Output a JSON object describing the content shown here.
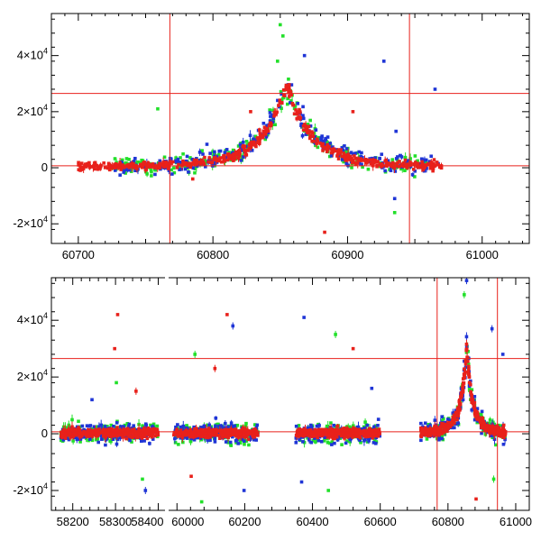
{
  "colors": {
    "red": "#e8211b",
    "green": "#22e02a",
    "blue": "#1f35d6",
    "axis": "#000000",
    "refline": "#e8211b"
  },
  "chart_data": [
    {
      "type": "scatter",
      "name": "zoom-panel",
      "title": "",
      "xlabel": "",
      "ylabel": "",
      "xlim": [
        60680,
        61035
      ],
      "ylim": [
        -27000,
        55000
      ],
      "x_ticks": [
        60700,
        60800,
        60900,
        61000
      ],
      "x_tick_labels": [
        "60700",
        "60800",
        "60900",
        "61000"
      ],
      "y_ticks": [
        -20000,
        0,
        20000,
        40000
      ],
      "y_tick_labels": [
        {
          "base": "-2×10",
          "exp": "4"
        },
        {
          "base": "0",
          "exp": ""
        },
        {
          "base": "2×10",
          "exp": "4"
        },
        {
          "base": "4×10",
          "exp": "4"
        }
      ],
      "hlines": [
        700,
        26500
      ],
      "vlines": [
        60768,
        60946
      ],
      "series": [
        {
          "name": "blue",
          "color": "blue",
          "marker": "square",
          "x_range": [
            60725,
            60970
          ],
          "outliers": [
            [
              60927,
              38000
            ],
            [
              60936,
              13000
            ],
            [
              60935,
              -11000
            ],
            [
              60965,
              28000
            ],
            [
              60868,
              40000
            ]
          ]
        },
        {
          "name": "green",
          "color": "green",
          "marker": "square",
          "x_range": [
            60725,
            60960
          ],
          "outliers": [
            [
              60850,
              51000
            ],
            [
              60852,
              47000
            ],
            [
              60759,
              21000
            ],
            [
              60935,
              -16000
            ],
            [
              60848,
              38000
            ]
          ]
        },
        {
          "name": "red",
          "color": "red",
          "marker": "square",
          "x_range": [
            60700,
            60970
          ],
          "outliers": [
            [
              60883,
              -23000
            ],
            [
              60904,
              20000
            ],
            [
              60828,
              20000
            ],
            [
              60785,
              -4000
            ]
          ]
        }
      ],
      "profile": {
        "peak_x": 60855,
        "peak_y": 29000,
        "widths": [
          14,
          28
        ],
        "base": 500
      }
    },
    {
      "type": "scatter",
      "name": "full-panel",
      "title": "",
      "xlabel": "",
      "ylabel": "",
      "x_segments": [
        {
          "xlim": [
            58150,
            58420
          ],
          "ticks": [
            58200,
            58300,
            58400
          ],
          "labels": [
            "58200",
            "58300",
            "58400"
          ]
        },
        {
          "xlim": [
            59970,
            61040
          ],
          "ticks": [
            60000,
            60200,
            60400,
            60600,
            60800,
            61000
          ],
          "labels": [
            "60000",
            "60200",
            "60400",
            "60600",
            "60800",
            "61000"
          ]
        }
      ],
      "ylim": [
        -27000,
        55000
      ],
      "y_ticks": [
        -20000,
        0,
        20000,
        40000
      ],
      "y_tick_labels": [
        {
          "base": "-2×10",
          "exp": "4"
        },
        {
          "base": "0",
          "exp": ""
        },
        {
          "base": "2×10",
          "exp": "4"
        },
        {
          "base": "4×10",
          "exp": "4"
        }
      ],
      "hlines": [
        700,
        26500
      ],
      "vlines": [
        60768,
        60946
      ],
      "observing_seasons": [
        [
          58170,
          58400
        ],
        [
          59990,
          60240
        ],
        [
          60350,
          60600
        ],
        [
          60720,
          60970
        ]
      ],
      "series": [
        {
          "name": "blue",
          "color": "blue",
          "marker": "square"
        },
        {
          "name": "green",
          "color": "green",
          "marker": "square"
        },
        {
          "name": "red",
          "color": "red",
          "marker": "square"
        }
      ],
      "outliers": [
        [
          58305,
          42000,
          "red"
        ],
        [
          58298,
          30000,
          "red"
        ],
        [
          58302,
          18000,
          "green"
        ],
        [
          58348,
          15000,
          "red"
        ],
        [
          58370,
          -20000,
          "blue"
        ],
        [
          58363,
          -16000,
          "green"
        ],
        [
          58245,
          12000,
          "blue"
        ],
        [
          60148,
          42000,
          "red"
        ],
        [
          60165,
          38000,
          "blue"
        ],
        [
          60053,
          28000,
          "green"
        ],
        [
          60073,
          -24000,
          "green"
        ],
        [
          60042,
          -15000,
          "red"
        ],
        [
          60198,
          -20000,
          "blue"
        ],
        [
          60112,
          23000,
          "red"
        ],
        [
          60375,
          41000,
          "blue"
        ],
        [
          60468,
          35000,
          "green"
        ],
        [
          60447,
          -20000,
          "green"
        ],
        [
          60520,
          30000,
          "red"
        ],
        [
          60368,
          -17000,
          "blue"
        ],
        [
          60575,
          16000,
          "blue"
        ],
        [
          60855,
          54000,
          "blue"
        ],
        [
          60848,
          49000,
          "green"
        ],
        [
          60930,
          37000,
          "blue"
        ],
        [
          60883,
          -23000,
          "red"
        ],
        [
          60935,
          -16000,
          "green"
        ],
        [
          60962,
          28000,
          "blue"
        ]
      ],
      "profile": {
        "peak_x": 60855,
        "peak_y": 29000,
        "widths": [
          14,
          28
        ],
        "base": 500
      }
    }
  ]
}
